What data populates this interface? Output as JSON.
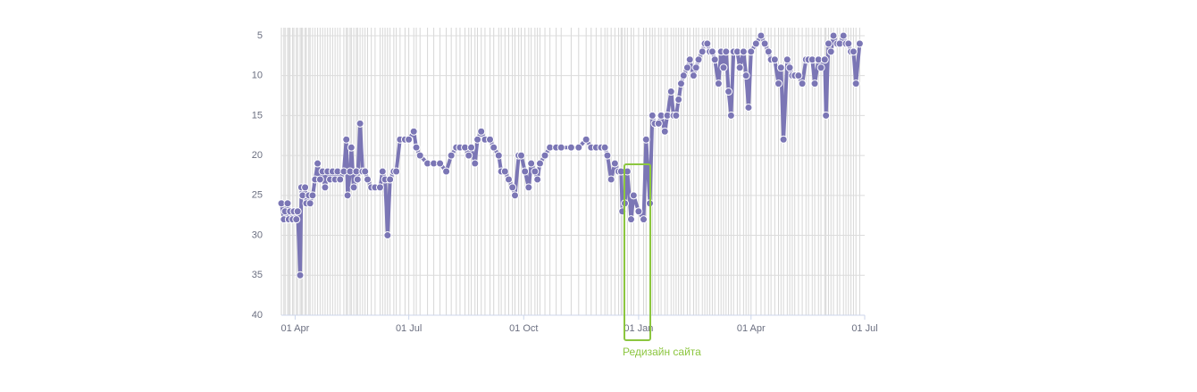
{
  "chart_data": {
    "type": "line",
    "annotation": "Редизайн сайта",
    "color": "#7b76b5",
    "grid": true,
    "y_inverted": true,
    "xlim": [
      -11,
      456
    ],
    "xticks": [
      {
        "value": 0,
        "label": "01 Apr"
      },
      {
        "value": 91,
        "label": "01 Jul"
      },
      {
        "value": 183,
        "label": "01 Oct"
      },
      {
        "value": 275,
        "label": "01 Jan"
      },
      {
        "value": 365,
        "label": "01 Apr"
      },
      {
        "value": 456,
        "label": "01 Jul"
      }
    ],
    "ylim": [
      40,
      4
    ],
    "yticks": [
      5,
      10,
      15,
      20,
      25,
      30,
      35,
      40
    ],
    "x": [
      -11,
      -9,
      -8,
      -6,
      -5,
      -4,
      -2,
      -1,
      1,
      2,
      4,
      5,
      6,
      8,
      9,
      11,
      12,
      14,
      16,
      18,
      20,
      22,
      24,
      26,
      28,
      30,
      32,
      34,
      36,
      39,
      41,
      42,
      44,
      45,
      47,
      49,
      50,
      52,
      54,
      56,
      58,
      61,
      64,
      68,
      70,
      72,
      74,
      76,
      79,
      81,
      84,
      88,
      91,
      95,
      97,
      100,
      106,
      111,
      116,
      121,
      125,
      129,
      132,
      136,
      139,
      141,
      144,
      146,
      149,
      152,
      156,
      159,
      163,
      165,
      168,
      171,
      174,
      176,
      179,
      181,
      184,
      187,
      189,
      192,
      194,
      196,
      200,
      204,
      209,
      213,
      221,
      227,
      233,
      237,
      241,
      245,
      248,
      250,
      253,
      256,
      259,
      261,
      262,
      264,
      266,
      269,
      271,
      275,
      279,
      281,
      284,
      286,
      288,
      291,
      293,
      296,
      298,
      301,
      303,
      305,
      307,
      309,
      311,
      314,
      316,
      319,
      321,
      323,
      326,
      328,
      330,
      332,
      334,
      336,
      339,
      341,
      343,
      345,
      347,
      349,
      351,
      354,
      356,
      359,
      361,
      363,
      365,
      369,
      373,
      376,
      379,
      381,
      384,
      387,
      389,
      391,
      394,
      396,
      398,
      400,
      403,
      406,
      409,
      411,
      414,
      416,
      419,
      421,
      424,
      425,
      427,
      429,
      431,
      434,
      436,
      439,
      441,
      443,
      445,
      447,
      449,
      452
    ],
    "values": [
      26,
      28,
      27,
      26,
      28,
      27,
      28,
      27,
      28,
      27,
      35,
      24,
      25,
      24,
      26,
      25,
      26,
      25,
      23,
      21,
      23,
      22,
      24,
      22,
      23,
      22,
      23,
      22,
      23,
      22,
      18,
      25,
      22,
      19,
      24,
      22,
      23,
      16,
      22,
      22,
      23,
      24,
      24,
      24,
      22,
      23,
      30,
      23,
      22,
      22,
      18,
      18,
      18,
      17,
      19,
      20,
      21,
      21,
      21,
      22,
      20,
      19,
      19,
      19,
      20,
      19,
      21,
      18,
      17,
      18,
      18,
      19,
      20,
      22,
      22,
      23,
      24,
      25,
      20,
      20,
      22,
      24,
      21,
      22,
      23,
      21,
      20,
      19,
      19,
      19,
      19,
      19,
      18,
      19,
      19,
      19,
      19,
      20,
      23,
      21,
      22,
      22,
      27,
      26,
      22,
      28,
      25,
      27,
      28,
      18,
      26,
      15,
      16,
      16,
      15,
      17,
      15,
      12,
      15,
      15,
      13,
      11,
      10,
      9,
      8,
      10,
      9,
      8,
      7,
      6,
      6,
      7,
      7,
      8,
      11,
      7,
      9,
      7,
      12,
      15,
      7,
      7,
      9,
      7,
      10,
      14,
      7,
      6,
      5,
      6,
      7,
      8,
      8,
      11,
      9,
      18,
      8,
      9,
      10,
      10,
      10,
      11,
      8,
      8,
      8,
      11,
      8,
      9,
      8,
      15,
      6,
      7,
      5,
      6,
      6,
      5,
      6,
      6,
      7,
      7,
      11,
      6
    ]
  }
}
